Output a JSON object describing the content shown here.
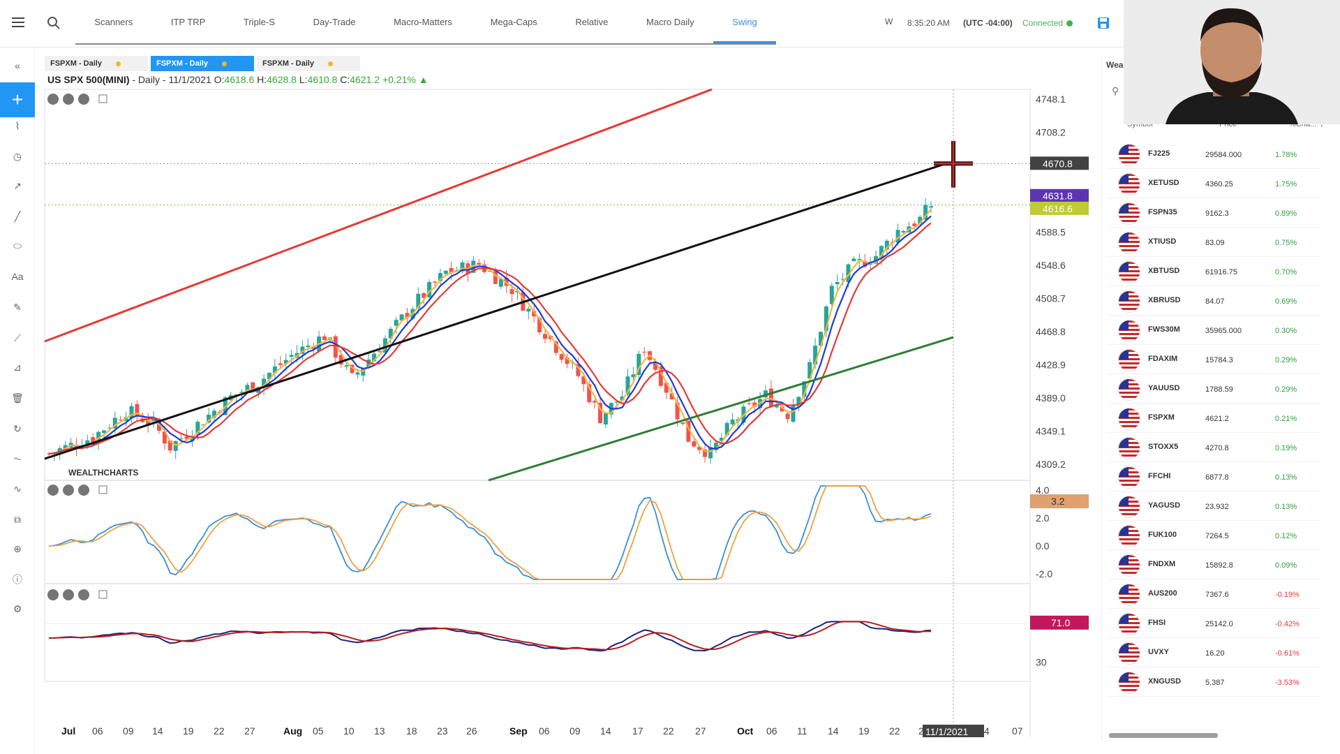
{
  "topbar": {
    "tabs": [
      {
        "label": "Scanners",
        "active": false
      },
      {
        "label": "ITP TRP",
        "active": false
      },
      {
        "label": "Triple-S",
        "active": false
      },
      {
        "label": "Day-Trade",
        "active": false
      },
      {
        "label": "Macro-Matters",
        "active": false
      },
      {
        "label": "Mega-Caps",
        "active": false
      },
      {
        "label": "Relative",
        "active": false
      },
      {
        "label": "Macro Daily",
        "active": false
      },
      {
        "label": "Swing",
        "active": true
      }
    ],
    "more_tab": "W",
    "time": "8:35:20 AM",
    "timezone": "(UTC -04:00)",
    "status": "Connected",
    "status_color": "#4caf50",
    "accent": "#3a8fe0"
  },
  "chart_tabs": [
    {
      "label": "FSPXM - Daily",
      "active": false
    },
    {
      "label": "FSPXM - Daily",
      "active": true
    },
    {
      "label": "FSPXM - Daily",
      "active": false
    }
  ],
  "header": {
    "symbol": "US SPX 500(MINI)",
    "period": " - Daily - 11/1/2021",
    "open_label": "O:",
    "open": "4618.6",
    "high_label": "H:",
    "high": "4628.8",
    "low_label": "L:",
    "low": "4610.8",
    "close_label": "C:",
    "close": "4621.2",
    "change": "+0.21%"
  },
  "watermark": "WEALTHCHARTS",
  "chart_data": {
    "type": "candlestick",
    "price_axis_ticks": [
      "4748.1",
      "4708.2",
      "4670.8",
      "4631.8",
      "4616.6",
      "4588.5",
      "4548.6",
      "4508.7",
      "4468.8",
      "4428.9",
      "4389.0",
      "4349.1",
      "4309.2"
    ],
    "price_markers": [
      {
        "label": "4670.8",
        "color": "#424242"
      },
      {
        "label": "4631.8",
        "color": "#5e35b1"
      },
      {
        "label": "4616.6",
        "color": "#c0ca33"
      }
    ],
    "osc1_ticks": [
      "4.0",
      "2.0",
      "0.0",
      "-2.0"
    ],
    "osc1_marker": "3.2",
    "osc2_ticks": [
      "70",
      "30"
    ],
    "osc2_marker": "71.0",
    "x_ticks": [
      "Jul",
      "06",
      "09",
      "14",
      "19",
      "22",
      "27",
      "Aug",
      "05",
      "10",
      "13",
      "18",
      "23",
      "26",
      "Sep",
      "06",
      "09",
      "14",
      "17",
      "22",
      "27",
      "Oct",
      "06",
      "11",
      "14",
      "19",
      "22",
      "2",
      "4",
      "07"
    ],
    "cursor_date": "11/1/2021",
    "colors": {
      "up": "#26a69a",
      "down": "#ef5350",
      "ma_red": "#e53935",
      "ma_blue": "#1e3adb",
      "ma_orange": "#f4b63d",
      "trend_red": "#e53935",
      "trend_black": "#111111",
      "trend_green": "#2e7d32"
    }
  },
  "watchlist": {
    "title": "Wea",
    "columns": {
      "symbol": "Symbol",
      "price": "Price",
      "change": "%Cha..."
    },
    "rows": [
      {
        "symbol": "FJ225",
        "price": "29584.000",
        "change": "1.78%"
      },
      {
        "symbol": "XETUSD",
        "price": "4360.25",
        "change": "1.75%"
      },
      {
        "symbol": "FSPN35",
        "price": "9162.3",
        "change": "0.89%"
      },
      {
        "symbol": "XTIUSD",
        "price": "83.09",
        "change": "0.75%"
      },
      {
        "symbol": "XBTUSD",
        "price": "61916.75",
        "change": "0.70%"
      },
      {
        "symbol": "XBRUSD",
        "price": "84.07",
        "change": "0.69%"
      },
      {
        "symbol": "FWS30M",
        "price": "35965.000",
        "change": "0.30%"
      },
      {
        "symbol": "FDAXIM",
        "price": "15784.3",
        "change": "0.29%"
      },
      {
        "symbol": "YAUUSD",
        "price": "1788.59",
        "change": "0.29%"
      },
      {
        "symbol": "FSPXM",
        "price": "4621.2",
        "change": "0.21%"
      },
      {
        "symbol": "STOXX5",
        "price": "4270.8",
        "change": "0.19%"
      },
      {
        "symbol": "FFCHI",
        "price": "6877.8",
        "change": "0.13%"
      },
      {
        "symbol": "YAGUSD",
        "price": "23.932",
        "change": "0.13%"
      },
      {
        "symbol": "FUK100",
        "price": "7264.5",
        "change": "0.12%"
      },
      {
        "symbol": "FNDXM",
        "price": "15892.8",
        "change": "0.09%"
      },
      {
        "symbol": "AUS200",
        "price": "7367.6",
        "change": "-0.19%"
      },
      {
        "symbol": "FHSI",
        "price": "25142.0",
        "change": "-0.42%"
      },
      {
        "symbol": "UVXY",
        "price": "16.20",
        "change": "-0.61%"
      },
      {
        "symbol": "XNGUSD",
        "price": "5.387",
        "change": "-3.53%"
      }
    ]
  },
  "left_tools": [
    "collapse-icon",
    "add-icon",
    "chart-type-icon",
    "clock-icon",
    "trend-icon",
    "line-tool-icon",
    "shapes-icon",
    "text-tool-icon",
    "pencil-icon",
    "ruler-icon",
    "fib-icon",
    "trash-icon",
    "refresh-icon",
    "indicator-icon",
    "pattern-icon",
    "layers-icon",
    "crosshair-icon",
    "info-icon",
    "settings-icon"
  ]
}
